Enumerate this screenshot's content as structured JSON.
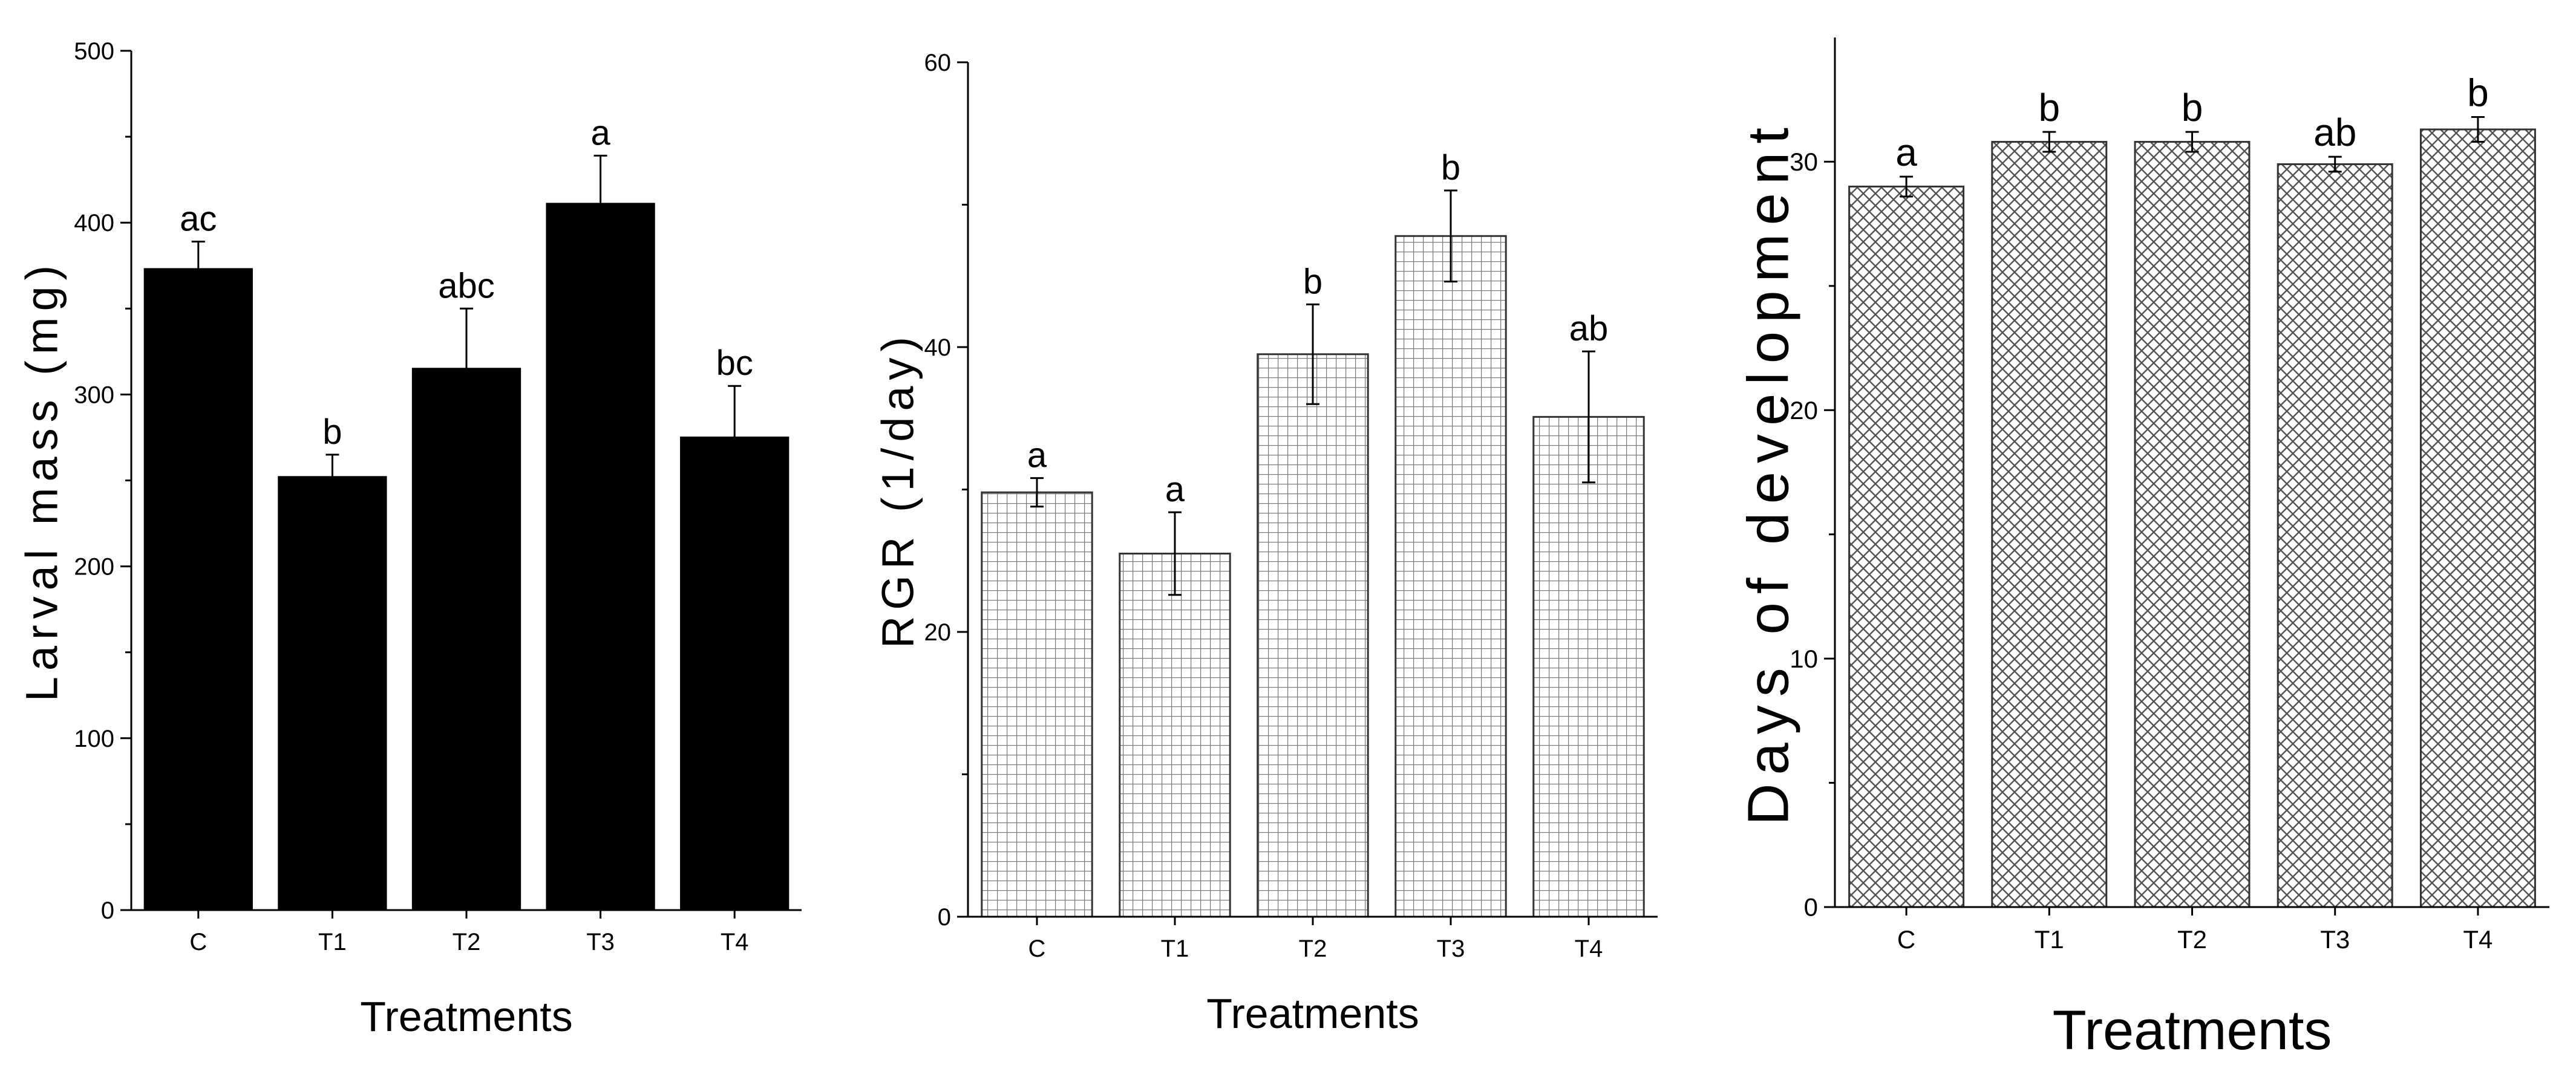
{
  "chart_data": [
    {
      "type": "bar",
      "title": "",
      "xlabel": "Treatments",
      "ylabel": "Larval mass (mg)",
      "categories": [
        "C",
        "T1",
        "T2",
        "T3",
        "T4"
      ],
      "values": [
        373,
        252,
        315,
        411,
        275
      ],
      "errors": [
        16,
        13,
        35,
        28,
        30
      ],
      "significance": [
        "ac",
        "b",
        "abc",
        "a",
        "bc"
      ],
      "ylim": [
        0,
        500
      ],
      "yticks": [
        0,
        100,
        200,
        300,
        400,
        500
      ],
      "fill": "solid",
      "bar_color": "#000000",
      "grid": false
    },
    {
      "type": "bar",
      "title": "",
      "xlabel": "Treatments",
      "ylabel": "RGR (1/day)",
      "categories": [
        "C",
        "T1",
        "T2",
        "T3",
        "T4"
      ],
      "values": [
        29.8,
        25.5,
        39.5,
        47.8,
        35.1
      ],
      "errors": [
        1.0,
        2.9,
        3.5,
        3.2,
        4.6
      ],
      "significance": [
        "a",
        "a",
        "b",
        "b",
        "ab"
      ],
      "ylim": [
        0,
        60
      ],
      "yticks": [
        0,
        20,
        40,
        60
      ],
      "fill": "grid-hatch",
      "bar_color": "#ffffff",
      "grid": false
    },
    {
      "type": "bar",
      "title": "",
      "xlabel": "Treatments",
      "ylabel": "Days of development",
      "categories": [
        "C",
        "T1",
        "T2",
        "T3",
        "T4"
      ],
      "values": [
        29.0,
        30.8,
        30.8,
        29.9,
        31.3
      ],
      "errors": [
        0.4,
        0.4,
        0.4,
        0.3,
        0.5
      ],
      "significance": [
        "a",
        "b",
        "b",
        "ab",
        "b"
      ],
      "ylim": [
        0,
        35
      ],
      "yticks": [
        0,
        10,
        20,
        30
      ],
      "fill": "diamond-hatch",
      "bar_color": "#ffffff",
      "grid": false
    }
  ]
}
